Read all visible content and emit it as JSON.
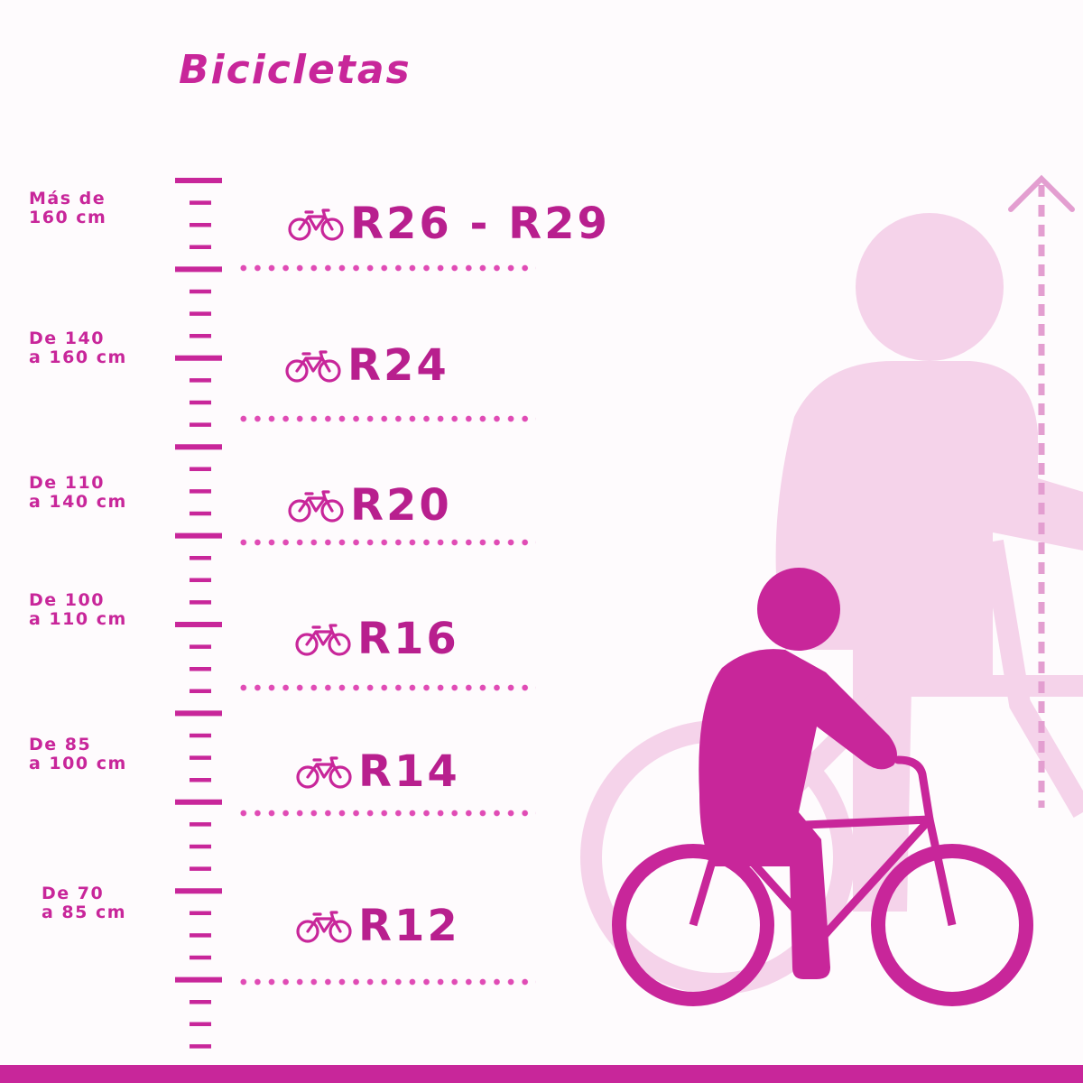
{
  "title": "Bicicletas",
  "colors": {
    "primary": "#c8269a",
    "dots": "#e04bb5",
    "ghost": "#f5d3ea",
    "background": "#fefbfd"
  },
  "rows": [
    {
      "height_lines": [
        "Más de",
        "160 cm"
      ],
      "size": "R26 - R29"
    },
    {
      "height_lines": [
        "De 140",
        "a 160 cm"
      ],
      "size": "R24"
    },
    {
      "height_lines": [
        "De 110",
        "a 140 cm"
      ],
      "size": "R20"
    },
    {
      "height_lines": [
        "De 100",
        "a 110 cm"
      ],
      "size": "R16"
    },
    {
      "height_lines": [
        "De 85",
        "a 100 cm"
      ],
      "size": "R14"
    },
    {
      "height_lines": [
        "De 70",
        "a 85 cm"
      ],
      "size": "R12"
    }
  ],
  "icons": {
    "row_icon": "bicycle-icon",
    "illustration": "child-riding-bicycle",
    "arrow": "height-arrow-up"
  }
}
